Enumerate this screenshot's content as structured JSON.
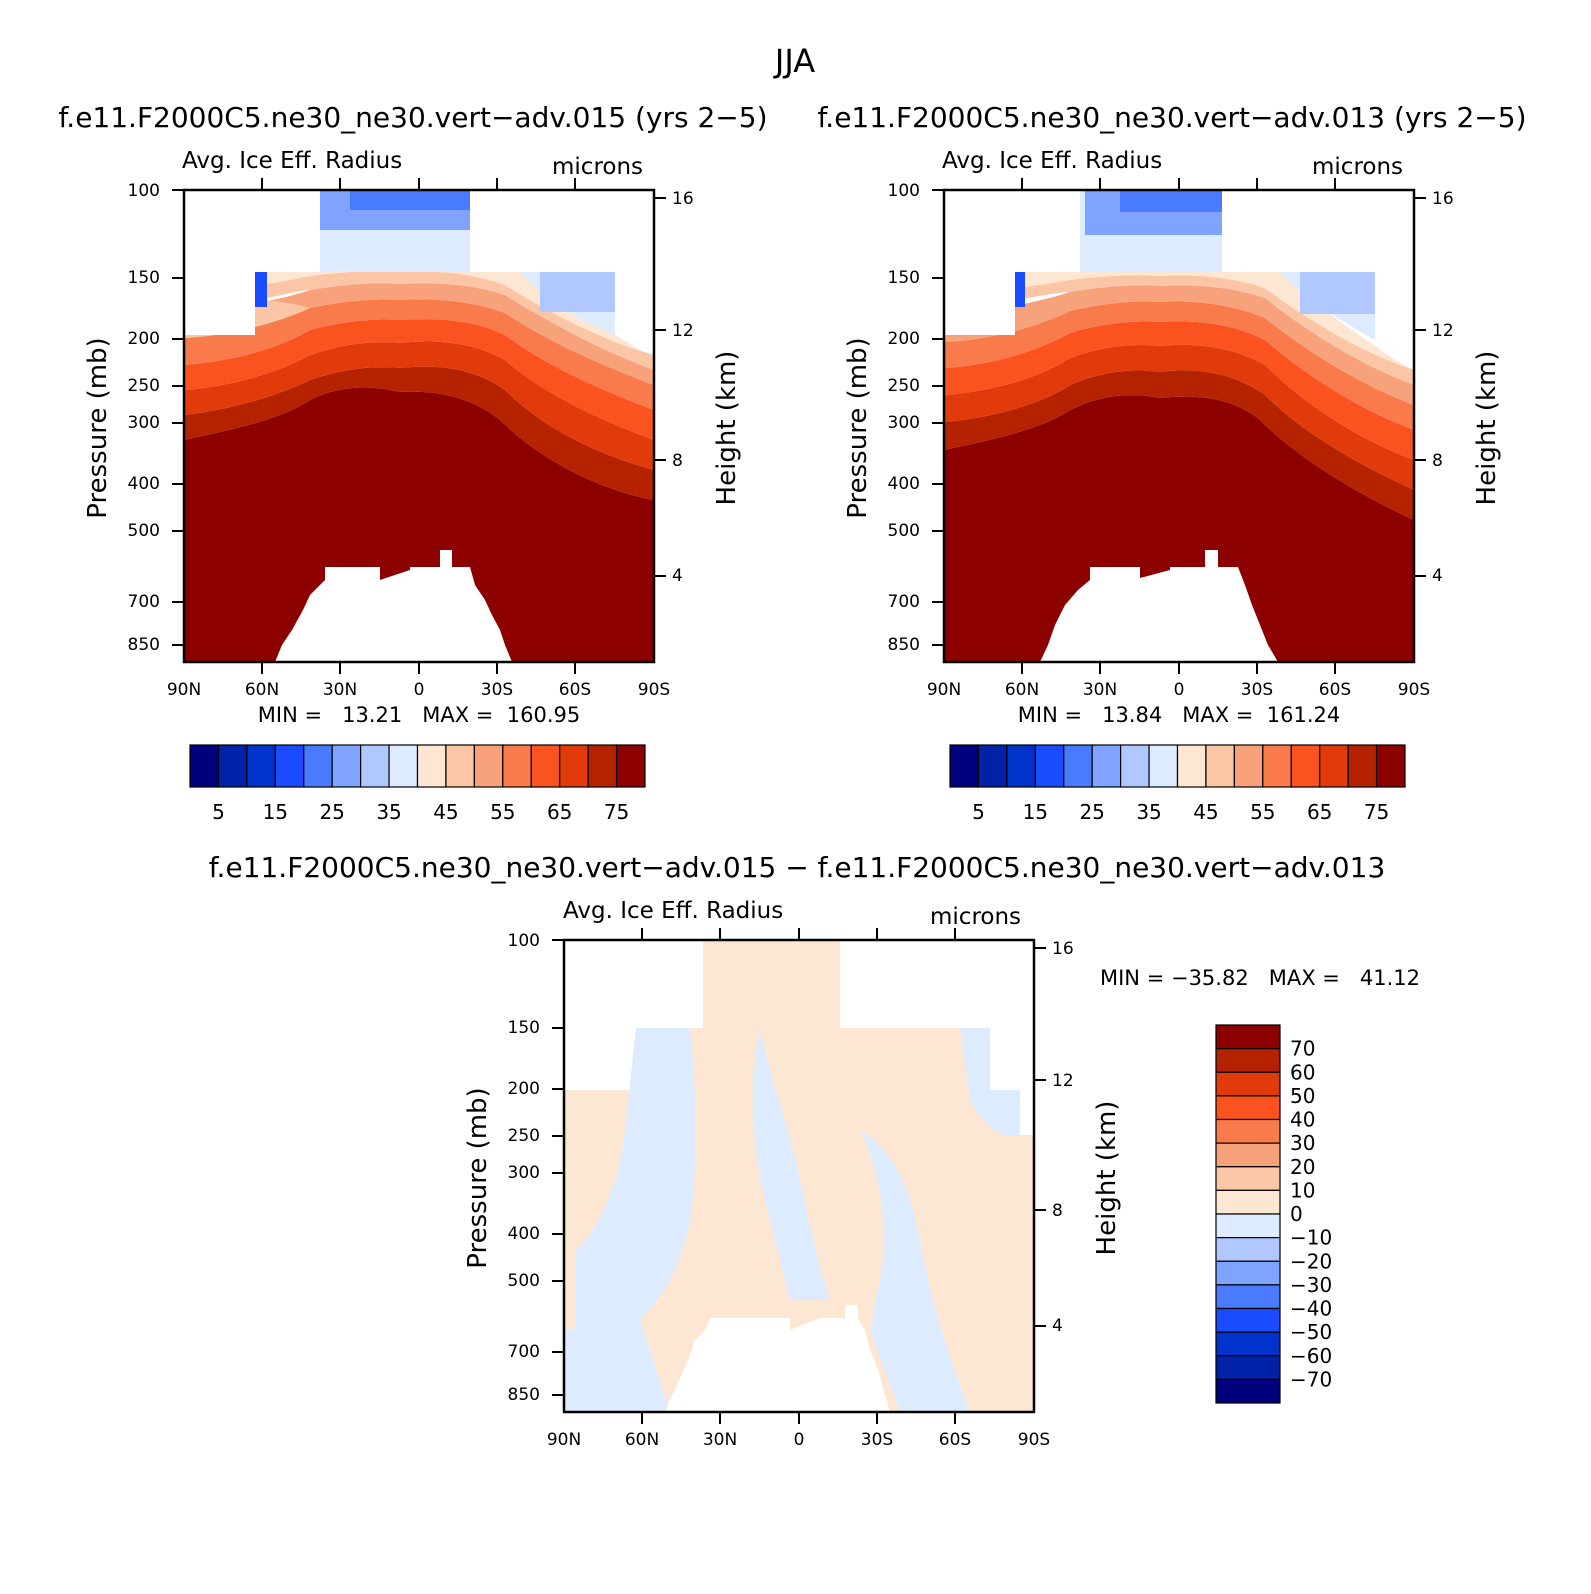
{
  "figure_title": "JJA",
  "panels": [
    {
      "case_title": "f.e11.F2000C5.ne30_ne30.vert−adv.015 (yrs 2−5)",
      "variable": "Avg. Ice Eff. Radius",
      "units": "microns",
      "ylabel_left": "Pressure (mb)",
      "ylabel_right": "Height (km)",
      "stats": "MIN =   13.21   MAX =  160.95"
    },
    {
      "case_title": "f.e11.F2000C5.ne30_ne30.vert−adv.013 (yrs 2−5)",
      "variable": "Avg. Ice Eff. Radius",
      "units": "microns",
      "ylabel_left": "Pressure (mb)",
      "ylabel_right": "Height (km)",
      "stats": "MIN =   13.84   MAX =  161.24"
    },
    {
      "case_title": "f.e11.F2000C5.ne30_ne30.vert−adv.015 − f.e11.F2000C5.ne30_ne30.vert−adv.013",
      "variable": "Avg. Ice Eff. Radius",
      "units": "microns",
      "ylabel_left": "Pressure (mb)",
      "ylabel_right": "Height (km)",
      "stats": "MIN = −35.82   MAX =   41.12"
    }
  ],
  "chart_data": [
    {
      "type": "heatmap",
      "title": "Avg. Ice Eff. Radius",
      "units": "microns",
      "x_tick_labels": [
        "90N",
        "60N",
        "30N",
        "0",
        "30S",
        "60S",
        "90S"
      ],
      "x_ticks_deg": [
        90,
        60,
        30,
        0,
        -30,
        -60,
        -90
      ],
      "y_ticks_pressure_mb": [
        100,
        150,
        200,
        250,
        300,
        400,
        500,
        700,
        850
      ],
      "y_ticks_height_km": [
        16,
        12,
        8,
        4
      ],
      "y_scale": "log-pressure",
      "ylim_mb": [
        100,
        925
      ],
      "colorbar_levels": [
        5,
        10,
        15,
        20,
        25,
        30,
        35,
        40,
        45,
        50,
        55,
        60,
        65,
        70,
        75
      ],
      "colorbar_labels": [
        "5",
        "15",
        "25",
        "35",
        "45",
        "55",
        "65",
        "75"
      ],
      "min": 13.21,
      "max": 160.95
    },
    {
      "type": "heatmap",
      "title": "Avg. Ice Eff. Radius",
      "units": "microns",
      "x_tick_labels": [
        "90N",
        "60N",
        "30N",
        "0",
        "30S",
        "60S",
        "90S"
      ],
      "x_ticks_deg": [
        90,
        60,
        30,
        0,
        -30,
        -60,
        -90
      ],
      "y_ticks_pressure_mb": [
        100,
        150,
        200,
        250,
        300,
        400,
        500,
        700,
        850
      ],
      "y_ticks_height_km": [
        16,
        12,
        8,
        4
      ],
      "y_scale": "log-pressure",
      "ylim_mb": [
        100,
        925
      ],
      "colorbar_levels": [
        5,
        10,
        15,
        20,
        25,
        30,
        35,
        40,
        45,
        50,
        55,
        60,
        65,
        70,
        75
      ],
      "colorbar_labels": [
        "5",
        "15",
        "25",
        "35",
        "45",
        "55",
        "65",
        "75"
      ],
      "min": 13.84,
      "max": 161.24
    },
    {
      "type": "heatmap",
      "title": "Avg. Ice Eff. Radius",
      "units": "microns",
      "x_tick_labels": [
        "90N",
        "60N",
        "30N",
        "0",
        "30S",
        "60S",
        "90S"
      ],
      "x_ticks_deg": [
        90,
        60,
        30,
        0,
        -30,
        -60,
        -90
      ],
      "y_ticks_pressure_mb": [
        100,
        150,
        200,
        250,
        300,
        400,
        500,
        700,
        850
      ],
      "y_ticks_height_km": [
        16,
        12,
        8,
        4
      ],
      "y_scale": "log-pressure",
      "ylim_mb": [
        100,
        925
      ],
      "colorbar_levels": [
        -70,
        -60,
        -50,
        -40,
        -30,
        -20,
        -10,
        0,
        10,
        20,
        30,
        40,
        50,
        60,
        70
      ],
      "colorbar_labels": [
        "70",
        "60",
        "50",
        "40",
        "30",
        "20",
        "10",
        "0",
        "−10",
        "−20",
        "−30",
        "−40",
        "−50",
        "−60",
        "−70"
      ],
      "min": -35.82,
      "max": 41.12
    }
  ],
  "colors": {
    "abs_palette": [
      "#00007f",
      "#0022a8",
      "#0033cc",
      "#1a4cff",
      "#4a7bff",
      "#7fa3ff",
      "#b0c8ff",
      "#dcebff",
      "#fde6d2",
      "#fbc6a6",
      "#f8a27b",
      "#f97a4a",
      "#fb5320",
      "#e13a0b",
      "#b42200",
      "#8c0000"
    ],
    "diff_palette": [
      "#00007f",
      "#0022a8",
      "#0033cc",
      "#1a4cff",
      "#4a7bff",
      "#7fa3ff",
      "#b0c8ff",
      "#dcebff",
      "#fde6d2",
      "#fbc6a6",
      "#f8a27b",
      "#f97a4a",
      "#fb5320",
      "#e13a0b",
      "#b42200",
      "#8c0000"
    ],
    "missing": "#ffffff"
  }
}
